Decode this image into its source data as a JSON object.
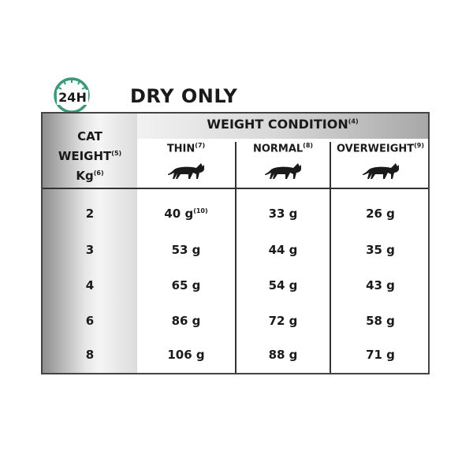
{
  "header": {
    "clock_label": "24H",
    "title": "DRY ONLY",
    "clock_color": "#3a9a7a"
  },
  "table": {
    "row_header": {
      "line1": "CAT",
      "line2": "WEIGHT",
      "line2_sup": "(5)",
      "line3": "Kg",
      "line3_sup": "(6)"
    },
    "group_header": {
      "label": "WEIGHT CONDITION",
      "sup": "(4)"
    },
    "columns": [
      {
        "label": "THIN",
        "sup": "(7)",
        "icon": "thin-cat-icon"
      },
      {
        "label": "NORMAL",
        "sup": "(8)",
        "icon": "normal-cat-icon"
      },
      {
        "label": "OVERWEIGHT",
        "sup": "(9)",
        "icon": "overweight-cat-icon"
      }
    ],
    "rows": [
      {
        "weight": "2",
        "values": [
          "40 g",
          "33 g",
          "26 g"
        ],
        "first_sup": "(10)"
      },
      {
        "weight": "3",
        "values": [
          "53 g",
          "44 g",
          "35 g"
        ]
      },
      {
        "weight": "4",
        "values": [
          "65 g",
          "54 g",
          "43 g"
        ]
      },
      {
        "weight": "6",
        "values": [
          "86 g",
          "72 g",
          "58 g"
        ]
      },
      {
        "weight": "8",
        "values": [
          "106 g",
          "88 g",
          "71 g"
        ]
      }
    ]
  }
}
